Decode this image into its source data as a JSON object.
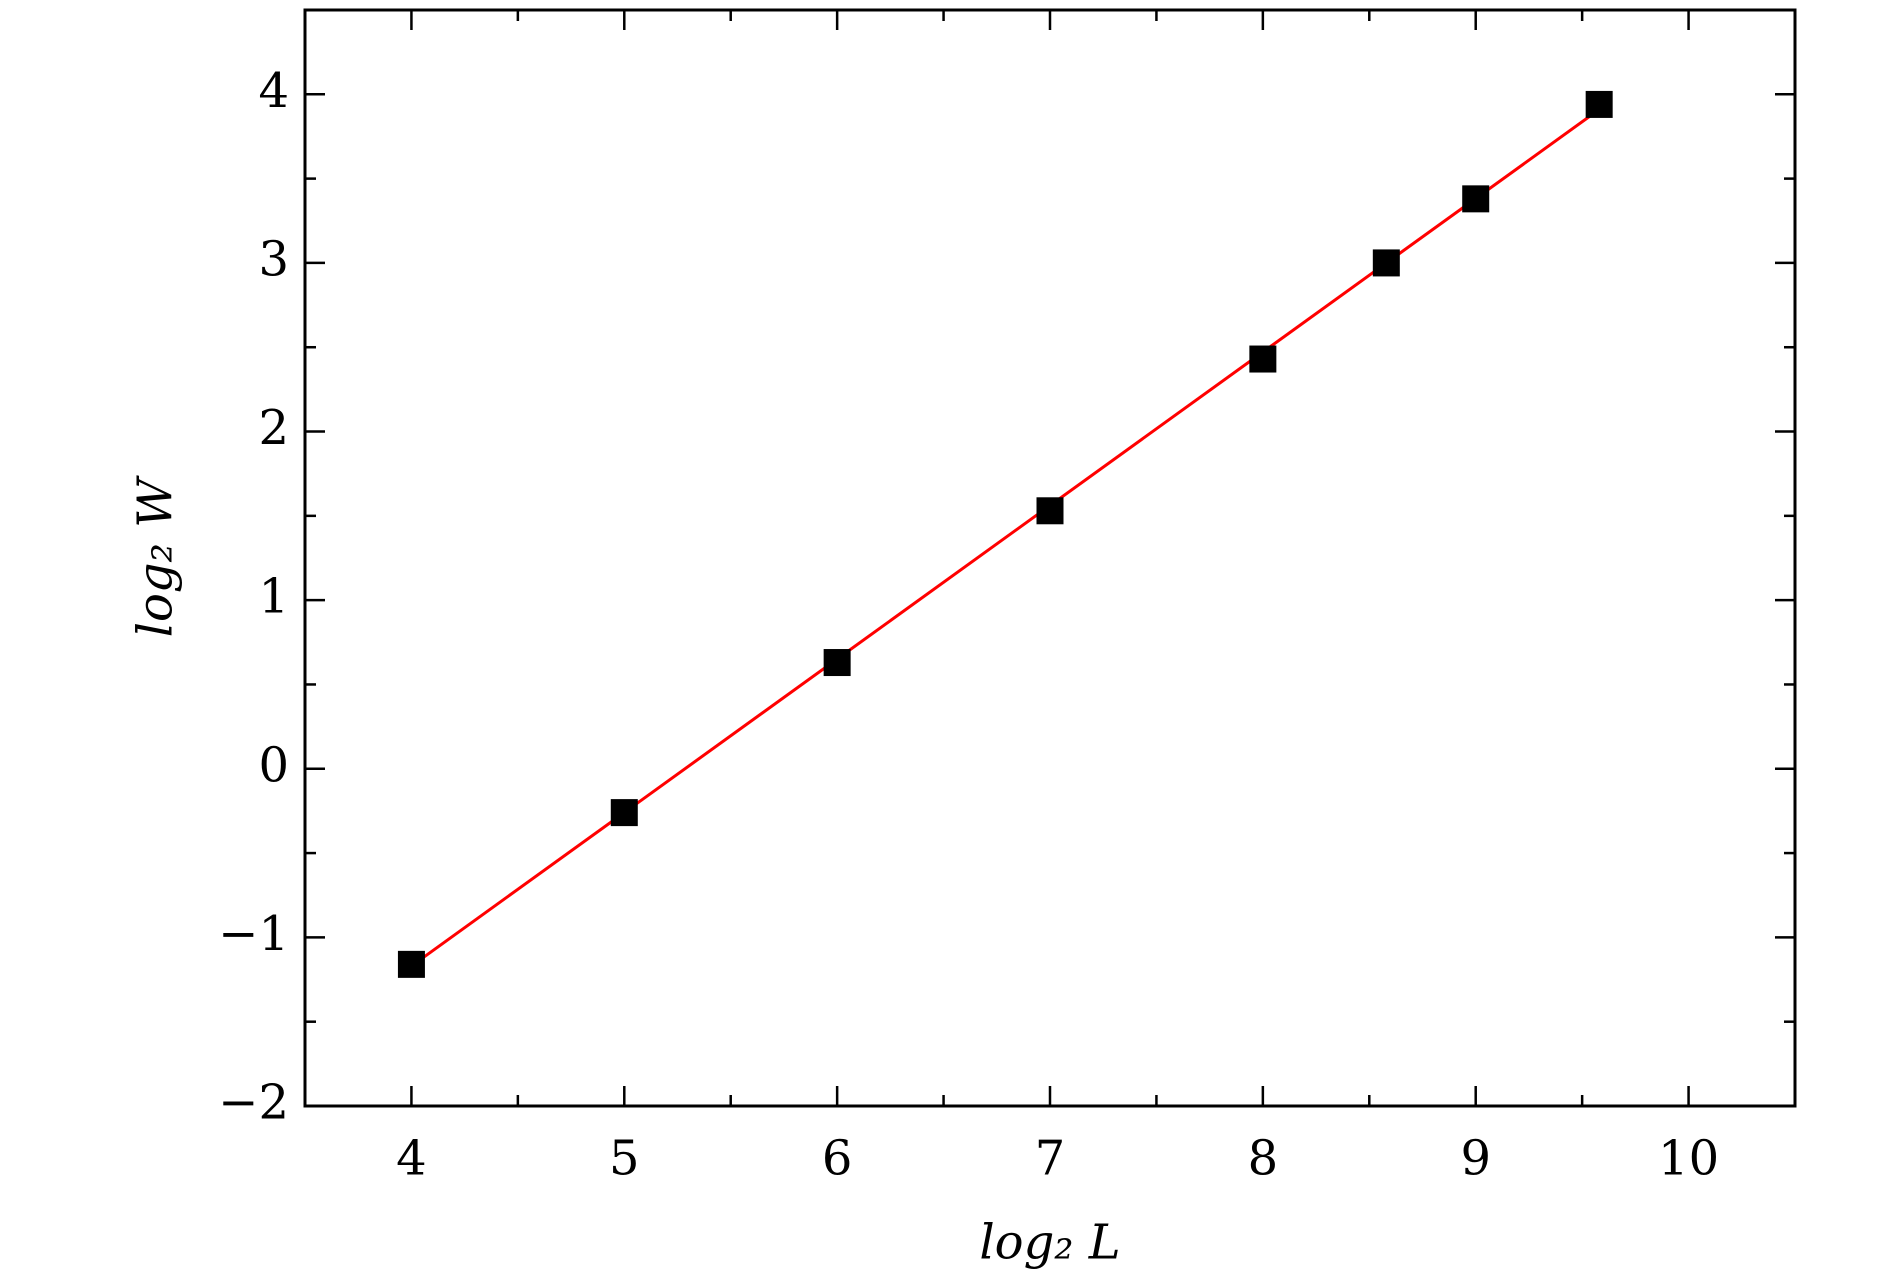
{
  "chart_data": {
    "type": "scatter",
    "x_label": "log₂ L",
    "y_label": "log₂ W",
    "series": [
      {
        "color": "#000000",
        "marker": "square",
        "x": [
          4,
          5,
          6,
          7,
          8,
          8.58,
          9,
          9.58
        ],
        "values": [
          -1.16,
          -0.26,
          0.63,
          1.53,
          2.43,
          3.0,
          3.38,
          3.94
        ]
      }
    ],
    "fit": {
      "color": "#ff0000",
      "x": [
        4,
        9.58
      ],
      "values": [
        -1.17,
        3.91
      ]
    },
    "xlim": [
      3.5,
      10.5
    ],
    "xticks": [
      4,
      5,
      6,
      7,
      8,
      9,
      10
    ],
    "ylim": [
      -2,
      4.5
    ],
    "yticks": [
      {
        "value": -2,
        "label": "−2"
      },
      {
        "value": -1,
        "label": "−1"
      },
      0,
      1,
      2,
      3,
      4
    ],
    "minor_ticks": true,
    "grid": false
  }
}
